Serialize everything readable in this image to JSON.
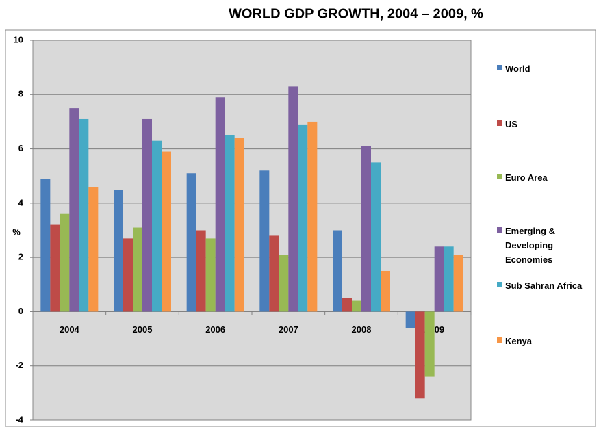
{
  "chart_data": {
    "type": "bar",
    "title": "WORLD GDP GROWTH, 2004 – 2009, %",
    "y_label": "%",
    "categories": [
      "2004",
      "2005",
      "2006",
      "2007",
      "2008",
      "2009"
    ],
    "series": [
      {
        "name": "World",
        "color": "#4a7ebb",
        "values": [
          4.9,
          4.5,
          5.1,
          5.2,
          3.0,
          -0.6
        ]
      },
      {
        "name": "US",
        "color": "#be4b48",
        "values": [
          3.2,
          2.7,
          3.0,
          2.8,
          0.5,
          -3.2
        ]
      },
      {
        "name": "Euro Area",
        "color": "#98b954",
        "values": [
          3.6,
          3.1,
          2.7,
          2.1,
          0.4,
          -2.4
        ]
      },
      {
        "name": "Emerging & Developing Economies",
        "color": "#7d60a0",
        "values": [
          7.5,
          7.1,
          7.9,
          8.3,
          6.1,
          2.4
        ]
      },
      {
        "name": "Sub Sahran Africa",
        "color": "#46aac5",
        "values": [
          7.1,
          6.3,
          6.5,
          6.9,
          5.5,
          2.4
        ]
      },
      {
        "name": "Kenya",
        "color": "#f79646",
        "values": [
          4.6,
          5.9,
          6.4,
          7.0,
          1.5,
          2.1
        ]
      }
    ],
    "ylim": [
      -4,
      10
    ],
    "yticks": [
      -4,
      -2,
      0,
      2,
      4,
      6,
      8,
      10
    ],
    "grid": true,
    "legend": "right"
  }
}
